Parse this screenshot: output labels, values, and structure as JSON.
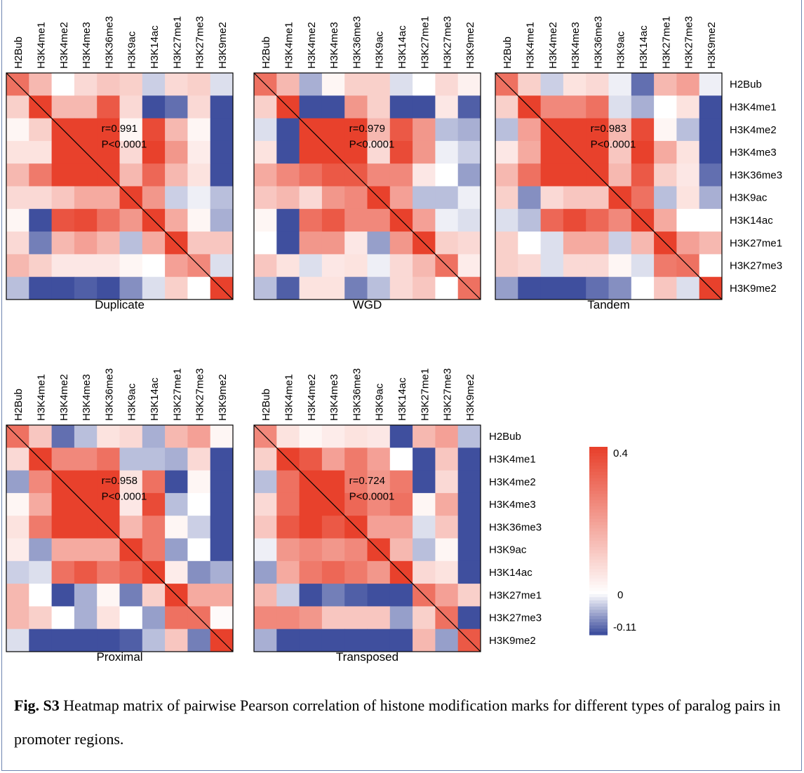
{
  "chart_data": {
    "type": "heatmap",
    "marks": [
      "H2Bub",
      "H3K4me1",
      "H3K4me2",
      "H3K4me3",
      "H3K36me3",
      "H3K9ac",
      "H3K14ac",
      "H3K27me1",
      "H3K27me3",
      "H3K9me2"
    ],
    "colorbar": {
      "min": -0.11,
      "max": 0.4,
      "ticks": [
        "0.4",
        "0",
        "-0.11"
      ],
      "colors": {
        "low": "#3f4f9e",
        "mid": "#ffffff",
        "high": "#e8412c"
      }
    },
    "panels": [
      {
        "name": "Duplicate",
        "r_label": "r=0.991",
        "p_label": "P<0.0001",
        "matrix": [
          [
            0.3,
            0.15,
            0.0,
            0.08,
            0.12,
            0.1,
            -0.03,
            0.08,
            0.1,
            -0.02
          ],
          [
            0.1,
            0.4,
            0.15,
            0.15,
            0.35,
            0.08,
            -0.11,
            -0.09,
            0.08,
            -0.11
          ],
          [
            0.02,
            0.1,
            0.4,
            0.4,
            0.4,
            0.02,
            0.38,
            0.15,
            0.02,
            -0.11
          ],
          [
            0.06,
            0.06,
            0.4,
            0.4,
            0.4,
            0.08,
            0.4,
            0.22,
            0.04,
            -0.11
          ],
          [
            0.15,
            0.28,
            0.4,
            0.4,
            0.4,
            0.15,
            0.32,
            0.15,
            0.06,
            -0.11
          ],
          [
            0.08,
            0.08,
            0.12,
            0.18,
            0.18,
            0.4,
            0.22,
            -0.03,
            -0.01,
            -0.04
          ],
          [
            0.02,
            -0.11,
            0.36,
            0.38,
            0.3,
            0.22,
            0.4,
            0.18,
            0.02,
            -0.05
          ],
          [
            0.08,
            -0.08,
            0.15,
            0.2,
            0.15,
            -0.04,
            0.18,
            0.4,
            0.12,
            0.12
          ],
          [
            0.15,
            0.1,
            0.05,
            0.05,
            0.05,
            0.02,
            0.0,
            0.2,
            0.25,
            -0.02
          ],
          [
            -0.04,
            -0.11,
            -0.11,
            -0.1,
            -0.11,
            -0.07,
            -0.02,
            0.1,
            0.0,
            0.4
          ]
        ]
      },
      {
        "name": "WGD",
        "r_label": "r=0.979",
        "p_label": "P<0.0001",
        "matrix": [
          [
            0.3,
            0.15,
            -0.05,
            0.02,
            0.1,
            0.1,
            -0.02,
            0.0,
            0.08,
            0.03
          ],
          [
            0.1,
            0.4,
            -0.11,
            -0.11,
            0.22,
            0.1,
            -0.11,
            -0.11,
            0.05,
            -0.1
          ],
          [
            -0.02,
            -0.11,
            0.4,
            0.4,
            0.4,
            0.15,
            0.35,
            0.22,
            -0.04,
            -0.05
          ],
          [
            0.06,
            -0.11,
            0.4,
            0.4,
            0.4,
            0.08,
            0.38,
            0.22,
            -0.01,
            -0.03
          ],
          [
            0.18,
            0.25,
            0.3,
            0.35,
            0.35,
            0.25,
            0.25,
            0.05,
            0.0,
            -0.06
          ],
          [
            0.12,
            0.15,
            0.08,
            0.22,
            0.25,
            0.4,
            0.2,
            -0.04,
            -0.04,
            -0.01
          ],
          [
            0.02,
            -0.11,
            0.3,
            0.35,
            0.25,
            0.25,
            0.4,
            0.2,
            -0.01,
            -0.02
          ],
          [
            0.0,
            -0.11,
            0.22,
            0.22,
            0.05,
            -0.06,
            0.22,
            0.4,
            0.1,
            0.08
          ],
          [
            0.12,
            0.06,
            -0.02,
            0.05,
            0.06,
            -0.01,
            0.08,
            0.15,
            0.3,
            0.04
          ],
          [
            -0.04,
            -0.1,
            0.06,
            0.06,
            -0.08,
            -0.04,
            0.08,
            0.12,
            0.0,
            0.3
          ]
        ]
      },
      {
        "name": "Tandem",
        "r_label": "r=0.983",
        "p_label": "P<0.0001",
        "matrix": [
          [
            0.3,
            0.1,
            -0.03,
            0.06,
            0.08,
            -0.01,
            -0.09,
            0.15,
            0.2,
            -0.01
          ],
          [
            0.1,
            0.4,
            0.25,
            0.25,
            0.3,
            -0.02,
            -0.05,
            0.0,
            0.06,
            -0.11
          ],
          [
            -0.04,
            0.2,
            0.4,
            0.4,
            0.4,
            0.15,
            0.38,
            0.02,
            -0.04,
            -0.11
          ],
          [
            0.05,
            0.18,
            0.4,
            0.4,
            0.4,
            0.12,
            0.4,
            0.18,
            0.06,
            -0.11
          ],
          [
            0.15,
            0.3,
            0.4,
            0.4,
            0.4,
            0.15,
            0.35,
            0.1,
            0.05,
            -0.09
          ],
          [
            0.1,
            -0.07,
            0.08,
            0.12,
            0.12,
            0.4,
            0.3,
            -0.04,
            0.06,
            -0.05
          ],
          [
            -0.02,
            -0.04,
            0.32,
            0.38,
            0.32,
            0.25,
            0.4,
            0.18,
            0.0,
            0.0
          ],
          [
            0.1,
            0.0,
            -0.02,
            0.18,
            0.18,
            -0.03,
            0.15,
            0.4,
            0.2,
            0.15
          ],
          [
            0.1,
            0.08,
            -0.02,
            0.08,
            0.08,
            0.02,
            -0.02,
            0.28,
            0.3,
            0.0
          ],
          [
            -0.06,
            -0.11,
            -0.11,
            -0.11,
            -0.09,
            -0.07,
            0.0,
            0.12,
            -0.02,
            0.4
          ]
        ]
      },
      {
        "name": "Proximal",
        "r_label": "r=0.958",
        "p_label": "P<0.0001",
        "matrix": [
          [
            0.3,
            0.12,
            -0.09,
            -0.04,
            0.06,
            0.08,
            -0.05,
            0.15,
            0.2,
            0.02
          ],
          [
            0.08,
            0.4,
            0.25,
            0.25,
            0.3,
            -0.04,
            -0.04,
            -0.05,
            0.08,
            -0.11
          ],
          [
            -0.06,
            0.25,
            0.4,
            0.4,
            0.4,
            0.06,
            0.3,
            -0.11,
            0.02,
            -0.11
          ],
          [
            0.02,
            0.18,
            0.4,
            0.4,
            0.4,
            0.05,
            0.38,
            -0.04,
            0.0,
            -0.11
          ],
          [
            0.06,
            0.28,
            0.4,
            0.4,
            0.4,
            0.15,
            0.28,
            0.02,
            -0.03,
            -0.11
          ],
          [
            0.04,
            -0.06,
            0.18,
            0.18,
            0.18,
            0.4,
            0.28,
            -0.06,
            0.0,
            -0.11
          ],
          [
            -0.03,
            -0.02,
            0.3,
            0.35,
            0.28,
            0.32,
            0.4,
            0.04,
            -0.07,
            -0.05
          ],
          [
            0.15,
            0.0,
            -0.11,
            -0.05,
            0.02,
            -0.08,
            0.1,
            0.4,
            0.18,
            0.18
          ],
          [
            0.15,
            0.1,
            0.0,
            -0.05,
            0.06,
            0.0,
            -0.06,
            0.3,
            0.3,
            0.01
          ],
          [
            -0.02,
            -0.11,
            -0.11,
            -0.11,
            -0.11,
            -0.1,
            -0.04,
            0.12,
            -0.08,
            0.4
          ]
        ]
      },
      {
        "name": "Transposed",
        "r_label": "r=0.724",
        "p_label": "P<0.0001",
        "matrix": [
          [
            0.25,
            0.06,
            0.02,
            0.04,
            0.06,
            0.05,
            -0.11,
            0.15,
            0.2,
            -0.04
          ],
          [
            0.1,
            0.4,
            0.35,
            0.2,
            0.28,
            0.2,
            0.0,
            -0.11,
            0.12,
            -0.11
          ],
          [
            -0.04,
            0.3,
            0.4,
            0.4,
            0.28,
            0.22,
            0.28,
            -0.11,
            0.08,
            -0.11
          ],
          [
            0.08,
            0.3,
            0.4,
            0.4,
            0.32,
            0.25,
            0.3,
            0.02,
            0.18,
            -0.11
          ],
          [
            0.12,
            0.35,
            0.4,
            0.35,
            0.4,
            0.2,
            0.2,
            -0.02,
            0.12,
            -0.11
          ],
          [
            -0.01,
            0.22,
            0.25,
            0.22,
            0.25,
            0.4,
            0.15,
            -0.04,
            0.02,
            -0.11
          ],
          [
            -0.06,
            0.18,
            0.28,
            0.32,
            0.28,
            0.22,
            0.4,
            0.08,
            0.06,
            -0.11
          ],
          [
            0.15,
            -0.03,
            -0.11,
            -0.08,
            -0.1,
            -0.11,
            -0.11,
            0.3,
            0.2,
            0.1
          ],
          [
            0.25,
            0.25,
            0.22,
            0.12,
            0.12,
            0.12,
            -0.06,
            0.1,
            0.3,
            -0.11
          ],
          [
            -0.05,
            -0.11,
            -0.11,
            -0.11,
            -0.11,
            -0.11,
            -0.11,
            0.15,
            -0.06,
            0.35
          ]
        ]
      }
    ]
  },
  "caption": {
    "label": "Fig. S3",
    "text": " Heatmap matrix of pairwise Pearson correlation of histone modification marks for different types of paralog pairs in promoter regions."
  }
}
